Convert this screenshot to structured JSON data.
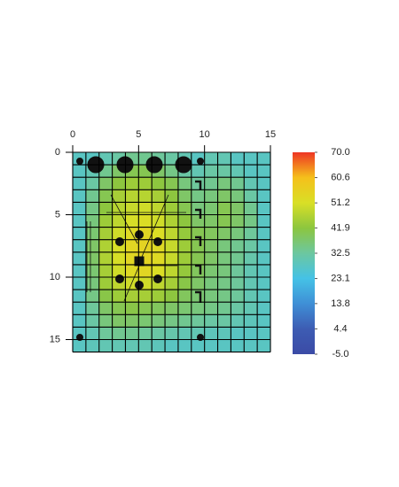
{
  "chart_data": {
    "type": "heatmap",
    "x": [
      0,
      1,
      2,
      3,
      4,
      5,
      6,
      7,
      8,
      9,
      10,
      11,
      12,
      13,
      14,
      15
    ],
    "y": [
      0,
      1,
      2,
      3,
      4,
      5,
      6,
      7,
      8,
      9,
      10,
      11,
      12,
      13,
      14,
      15,
      16
    ],
    "xlim": [
      0,
      15
    ],
    "ylim": [
      0,
      16
    ],
    "xticks": [
      0,
      5,
      10,
      15
    ],
    "yticks": [
      0,
      5,
      10,
      15
    ],
    "z": [
      [
        28,
        28,
        30,
        32,
        34,
        34,
        33,
        32,
        30,
        28,
        30,
        30,
        28,
        28,
        28
      ],
      [
        28,
        30,
        34,
        38,
        40,
        40,
        38,
        35,
        32,
        30,
        32,
        32,
        30,
        28,
        28
      ],
      [
        28,
        32,
        38,
        42,
        44,
        44,
        42,
        40,
        36,
        33,
        34,
        36,
        34,
        30,
        28
      ],
      [
        28,
        34,
        40,
        45,
        47,
        47,
        45,
        42,
        38,
        35,
        36,
        38,
        36,
        32,
        28
      ],
      [
        28,
        35,
        42,
        47,
        49,
        50,
        48,
        44,
        40,
        36,
        37,
        40,
        38,
        34,
        28
      ],
      [
        28,
        36,
        44,
        48,
        51,
        52,
        50,
        46,
        42,
        38,
        38,
        40,
        38,
        35,
        28
      ],
      [
        28,
        37,
        45,
        50,
        53,
        54,
        52,
        48,
        43,
        40,
        39,
        38,
        36,
        33,
        28
      ],
      [
        28,
        38,
        46,
        51,
        54,
        55,
        53,
        49,
        44,
        40,
        38,
        36,
        34,
        32,
        28
      ],
      [
        28,
        38,
        46,
        51,
        54,
        55,
        53,
        49,
        44,
        40,
        38,
        36,
        34,
        31,
        28
      ],
      [
        28,
        37,
        45,
        50,
        53,
        54,
        52,
        48,
        43,
        39,
        37,
        36,
        33,
        30,
        28
      ],
      [
        28,
        36,
        44,
        48,
        50,
        50,
        48,
        45,
        41,
        38,
        36,
        35,
        33,
        30,
        28
      ],
      [
        28,
        35,
        41,
        44,
        45,
        45,
        44,
        42,
        39,
        37,
        36,
        35,
        33,
        30,
        28
      ],
      [
        28,
        33,
        38,
        40,
        41,
        40,
        39,
        38,
        37,
        36,
        35,
        34,
        32,
        30,
        28
      ],
      [
        28,
        32,
        36,
        38,
        38,
        37,
        36,
        35,
        34,
        33,
        32,
        32,
        30,
        29,
        28
      ],
      [
        28,
        30,
        33,
        34,
        34,
        33,
        32,
        31,
        30,
        30,
        29,
        29,
        28,
        28,
        28
      ],
      [
        28,
        29,
        30,
        30,
        30,
        30,
        29,
        28,
        28,
        28,
        28,
        28,
        28,
        28,
        28
      ]
    ],
    "clim": [
      -5,
      70
    ],
    "colormap": [
      "#3b4ba6",
      "#3d5cb3",
      "#3f8fd6",
      "#45c2e6",
      "#6cc7a0",
      "#8cc63f",
      "#d9df26",
      "#f5c01b",
      "#ee3524"
    ],
    "cticks": [
      {
        "value": 70,
        "label": "70.0"
      },
      60.6,
      51.2,
      41.9,
      32.5,
      23.1,
      13.8,
      4.4,
      {
        "value": -5,
        "label": "-5.0"
      }
    ],
    "grid": true
  }
}
